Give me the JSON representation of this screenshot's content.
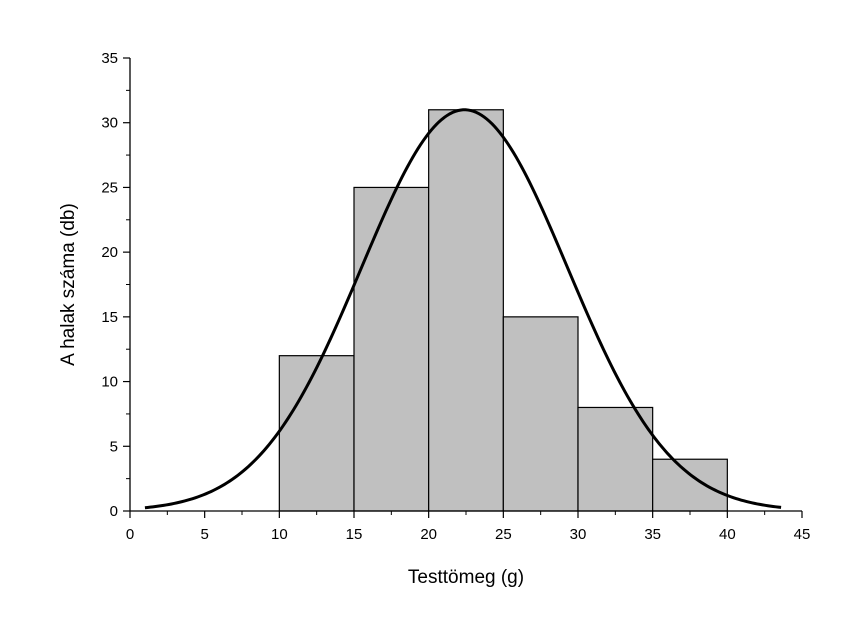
{
  "chart_data": {
    "type": "bar",
    "title": "",
    "xlabel": "Testtömeg (g)",
    "ylabel": "A halak száma (db)",
    "xlim": [
      0,
      45
    ],
    "ylim": [
      0,
      35
    ],
    "xticks": [
      0,
      5,
      10,
      15,
      20,
      25,
      30,
      35,
      40,
      45
    ],
    "yticks": [
      0,
      5,
      10,
      15,
      20,
      25,
      30,
      35
    ],
    "grid": false,
    "bins": [
      {
        "x0": 10,
        "x1": 15,
        "value": 12
      },
      {
        "x0": 15,
        "x1": 20,
        "value": 25
      },
      {
        "x0": 20,
        "x1": 25,
        "value": 31
      },
      {
        "x0": 25,
        "x1": 30,
        "value": 15
      },
      {
        "x0": 30,
        "x1": 35,
        "value": 8
      },
      {
        "x0": 35,
        "x1": 40,
        "value": 4
      }
    ],
    "fit_curve": {
      "type": "normal",
      "mean": 22.4,
      "peak": 31,
      "sigma": 6.9,
      "x_range": [
        1,
        43.6
      ]
    },
    "colors": {
      "bar_fill": "#c0c0c0",
      "bar_stroke": "#000000",
      "curve": "#000000"
    }
  }
}
